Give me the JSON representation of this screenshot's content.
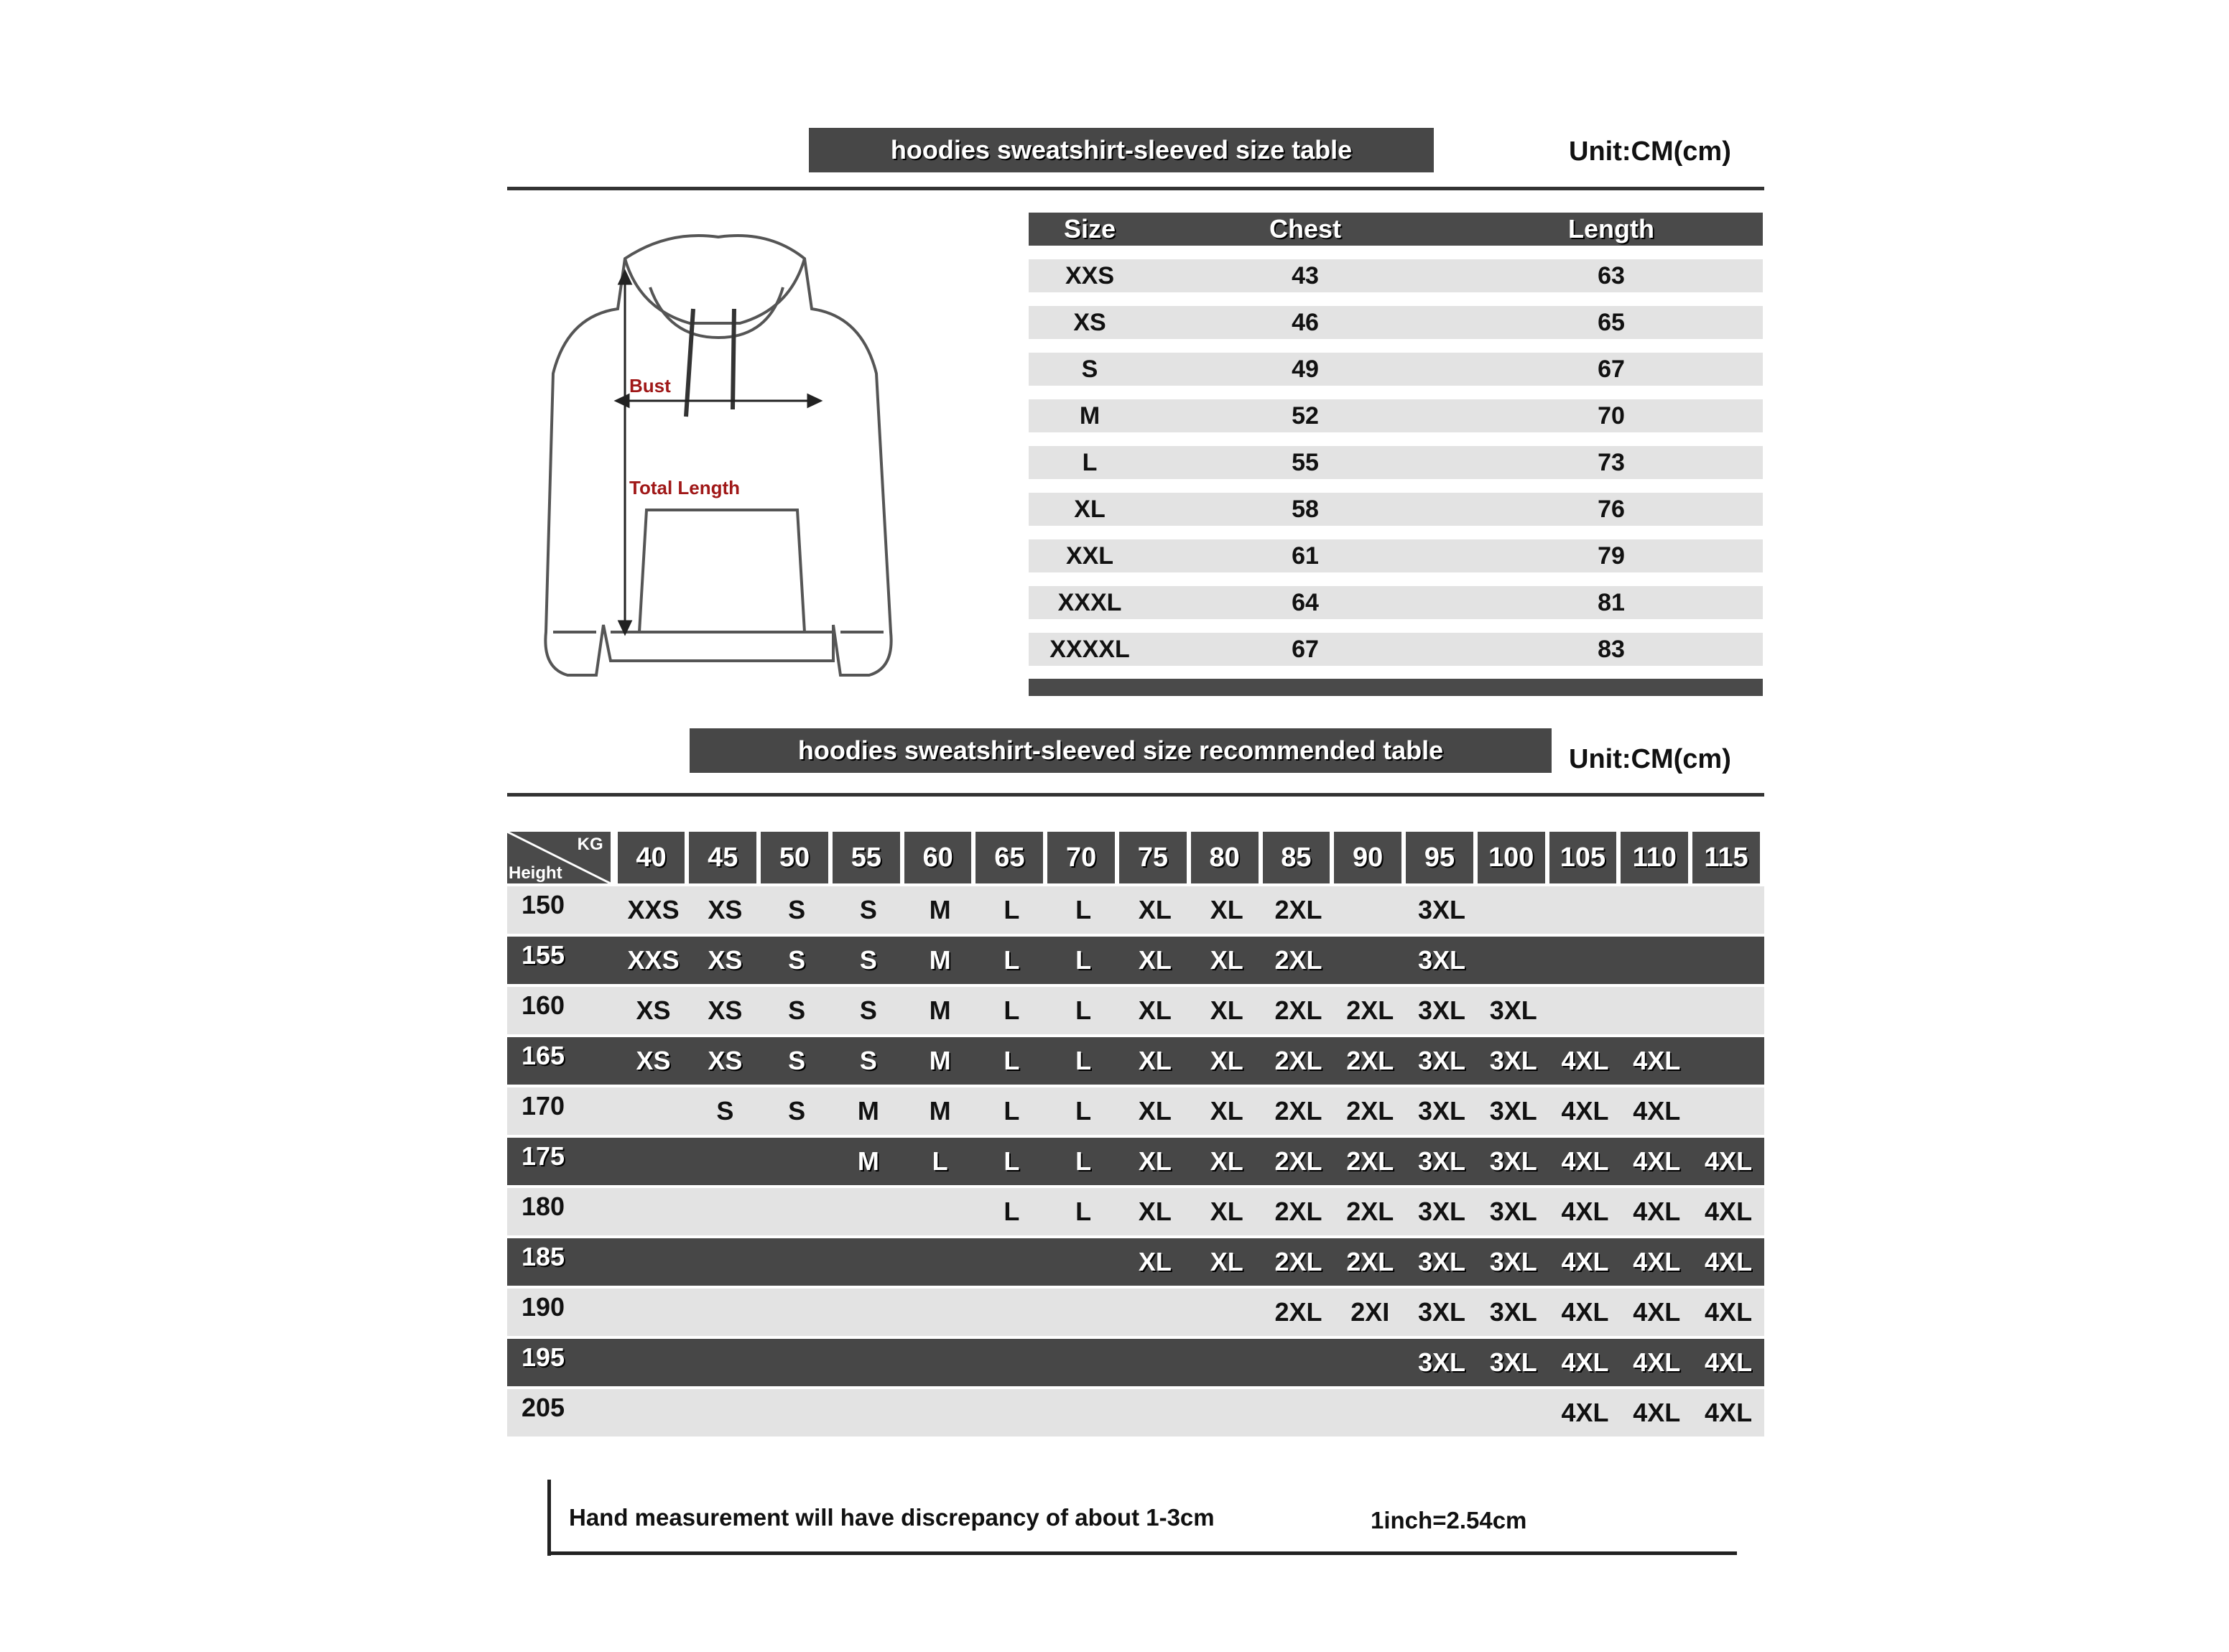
{
  "size_chart": {
    "title": "hoodies sweatshirt-sleeved size  table",
    "unit": "Unit:CM(cm)",
    "diagram_labels": {
      "bust": "Bust",
      "length": "Total Length"
    },
    "columns": [
      "Size",
      "Chest",
      "Length"
    ],
    "rows": [
      [
        "XXS",
        "43",
        "63"
      ],
      [
        "XS",
        "46",
        "65"
      ],
      [
        "S",
        "49",
        "67"
      ],
      [
        "M",
        "52",
        "70"
      ],
      [
        "L",
        "55",
        "73"
      ],
      [
        "XL",
        "58",
        "76"
      ],
      [
        "XXL",
        "61",
        "79"
      ],
      [
        "XXXL",
        "64",
        "81"
      ],
      [
        "XXXXL",
        "67",
        "83"
      ]
    ]
  },
  "recommend_chart": {
    "title": "hoodies sweatshirt-sleeved size recommended table",
    "unit": "Unit:CM(cm)",
    "corner_kg": "KG",
    "corner_height": "Height",
    "weights": [
      "40",
      "45",
      "50",
      "55",
      "60",
      "65",
      "70",
      "75",
      "80",
      "85",
      "90",
      "95",
      "100",
      "105",
      "110",
      "115"
    ],
    "rows": [
      {
        "height": "150",
        "sizes": [
          "XXS",
          "XS",
          "S",
          "S",
          "M",
          "L",
          "L",
          "XL",
          "XL",
          "2XL",
          "",
          "3XL",
          "",
          "",
          "",
          ""
        ]
      },
      {
        "height": "155",
        "sizes": [
          "XXS",
          "XS",
          "S",
          "S",
          "M",
          "L",
          "L",
          "XL",
          "XL",
          "2XL",
          "",
          "3XL",
          "",
          "",
          "",
          ""
        ]
      },
      {
        "height": "160",
        "sizes": [
          "XS",
          "XS",
          "S",
          "S",
          "M",
          "L",
          "L",
          "XL",
          "XL",
          "2XL",
          "2XL",
          "3XL",
          "3XL",
          "",
          "",
          ""
        ]
      },
      {
        "height": "165",
        "sizes": [
          "XS",
          "XS",
          "S",
          "S",
          "M",
          "L",
          "L",
          "XL",
          "XL",
          "2XL",
          "2XL",
          "3XL",
          "3XL",
          "4XL",
          "4XL",
          ""
        ]
      },
      {
        "height": "170",
        "sizes": [
          "",
          "S",
          "S",
          "M",
          "M",
          "L",
          "L",
          "XL",
          "XL",
          "2XL",
          "2XL",
          "3XL",
          "3XL",
          "4XL",
          "4XL",
          ""
        ]
      },
      {
        "height": "175",
        "sizes": [
          "",
          "",
          "",
          "M",
          "L",
          "L",
          "L",
          "XL",
          "XL",
          "2XL",
          "2XL",
          "3XL",
          "3XL",
          "4XL",
          "4XL",
          "4XL"
        ]
      },
      {
        "height": "180",
        "sizes": [
          "",
          "",
          "",
          "",
          "",
          "L",
          "L",
          "XL",
          "XL",
          "2XL",
          "2XL",
          "3XL",
          "3XL",
          "4XL",
          "4XL",
          "4XL"
        ]
      },
      {
        "height": "185",
        "sizes": [
          "",
          "",
          "",
          "",
          "",
          "",
          "",
          "XL",
          "XL",
          "2XL",
          "2XL",
          "3XL",
          "3XL",
          "4XL",
          "4XL",
          "4XL"
        ]
      },
      {
        "height": "190",
        "sizes": [
          "",
          "",
          "",
          "",
          "",
          "",
          "",
          "",
          "",
          "2XL",
          "2XI",
          "3XL",
          "3XL",
          "4XL",
          "4XL",
          "4XL"
        ]
      },
      {
        "height": "195",
        "sizes": [
          "",
          "",
          "",
          "",
          "",
          "",
          "",
          "",
          "",
          "",
          "",
          "3XL",
          "3XL",
          "4XL",
          "4XL",
          "4XL"
        ]
      },
      {
        "height": "205",
        "sizes": [
          "",
          "",
          "",
          "",
          "",
          "",
          "",
          "",
          "",
          "",
          "",
          "",
          "",
          "4XL",
          "4XL",
          "4XL"
        ]
      }
    ]
  },
  "footer": {
    "note": "Hand measurement will have discrepancy of about  1-3cm",
    "conversion": "1inch=2.54cm"
  },
  "colors": {
    "bar": "#474747",
    "row_light": "#e3e3e3",
    "label_red": "#a01818"
  }
}
